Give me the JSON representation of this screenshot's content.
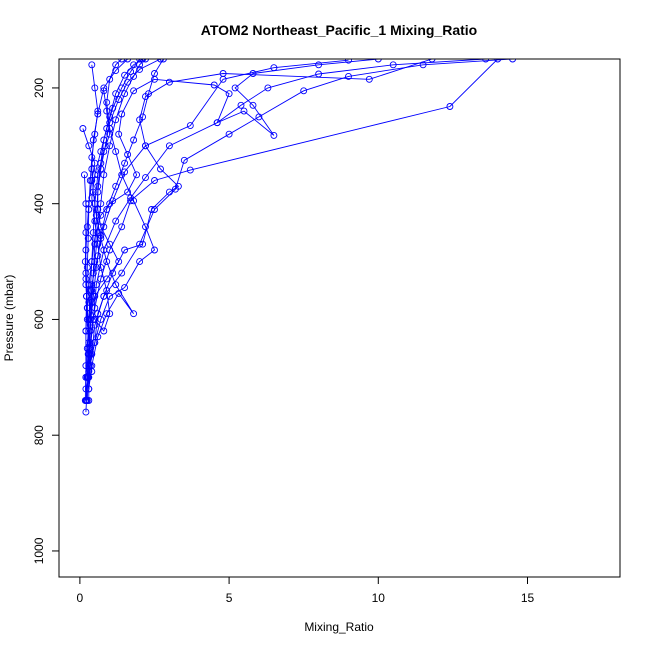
{
  "chart_data": {
    "type": "line",
    "title": "ATOM2 Northeast_Pacific_1 Mixing_Ratio",
    "xlabel": "Mixing_Ratio",
    "ylabel": "Pressure (mbar)",
    "xlim": [
      -0.7,
      18.1
    ],
    "ylim": [
      1045,
      150
    ],
    "y_reversed": true,
    "x_ticks": [
      0,
      5,
      10,
      15
    ],
    "y_ticks": [
      200,
      400,
      600,
      800,
      1000
    ],
    "grid": false,
    "legend": "none",
    "series_color": "#0000ff",
    "marker": "open-circle",
    "series": [
      {
        "points": [
          [
            0.2,
            760
          ],
          [
            0.22,
            740
          ],
          [
            0.25,
            700
          ],
          [
            0.3,
            660
          ],
          [
            0.35,
            620
          ],
          [
            0.4,
            570
          ],
          [
            0.45,
            520
          ],
          [
            0.5,
            470
          ],
          [
            0.55,
            430
          ],
          [
            0.6,
            380
          ],
          [
            0.7,
            340
          ],
          [
            0.85,
            300
          ],
          [
            1.0,
            260
          ],
          [
            1.3,
            220
          ],
          [
            1.6,
            190
          ],
          [
            2.0,
            168
          ],
          [
            2.7,
            150
          ]
        ]
      },
      {
        "points": [
          [
            0.25,
            740
          ],
          [
            0.28,
            700
          ],
          [
            0.35,
            650
          ],
          [
            0.45,
            600
          ],
          [
            0.55,
            540
          ],
          [
            0.8,
            480
          ],
          [
            1.2,
            430
          ],
          [
            1.7,
            390
          ],
          [
            2.2,
            355
          ],
          [
            3.0,
            300
          ],
          [
            4.6,
            260
          ],
          [
            5.4,
            230
          ],
          [
            6.3,
            200
          ],
          [
            8.0,
            176
          ],
          [
            10.5,
            160
          ],
          [
            13.6,
            150
          ]
        ]
      },
      {
        "points": [
          [
            0.3,
            740
          ],
          [
            0.3,
            700
          ],
          [
            0.4,
            660
          ],
          [
            0.5,
            610
          ],
          [
            0.8,
            560
          ],
          [
            1.4,
            520
          ],
          [
            2.0,
            470
          ],
          [
            2.5,
            410
          ],
          [
            3.2,
            375
          ],
          [
            3.5,
            325
          ],
          [
            5.0,
            280
          ],
          [
            6.0,
            250
          ],
          [
            7.5,
            205
          ],
          [
            9.0,
            180
          ],
          [
            11.5,
            160
          ],
          [
            14.5,
            150
          ]
        ]
      },
      {
        "points": [
          [
            0.2,
            740
          ],
          [
            0.25,
            700
          ],
          [
            0.3,
            650
          ],
          [
            0.35,
            600
          ],
          [
            0.4,
            540
          ],
          [
            0.6,
            490
          ],
          [
            0.8,
            440
          ],
          [
            1.1,
            395
          ],
          [
            1.5,
            345
          ],
          [
            2.2,
            300
          ],
          [
            3.7,
            265
          ],
          [
            4.8,
            185
          ],
          [
            6.5,
            165
          ],
          [
            9.0,
            152
          ]
        ]
      },
      {
        "points": [
          [
            0.25,
            700
          ],
          [
            0.35,
            640
          ],
          [
            0.5,
            580
          ],
          [
            0.7,
            530
          ],
          [
            1.0,
            480
          ],
          [
            1.4,
            440
          ],
          [
            1.7,
            395
          ],
          [
            2.5,
            360
          ],
          [
            3.7,
            342
          ],
          [
            12.4,
            232
          ],
          [
            14.0,
            150
          ]
        ]
      },
      {
        "points": [
          [
            0.2,
            700
          ],
          [
            0.28,
            660
          ],
          [
            0.35,
            610
          ],
          [
            0.45,
            560
          ],
          [
            0.55,
            510
          ],
          [
            0.7,
            455
          ],
          [
            0.9,
            410
          ],
          [
            1.2,
            370
          ],
          [
            1.5,
            330
          ],
          [
            1.8,
            290
          ],
          [
            2.1,
            250
          ],
          [
            2.3,
            210
          ],
          [
            2.5,
            175
          ],
          [
            2.8,
            150
          ]
        ]
      },
      {
        "points": [
          [
            0.3,
            720
          ],
          [
            0.4,
            680
          ],
          [
            0.6,
            630
          ],
          [
            0.9,
            590
          ],
          [
            1.3,
            555
          ],
          [
            1.8,
            590
          ],
          [
            1.2,
            540
          ],
          [
            0.9,
            500
          ],
          [
            0.7,
            460
          ],
          [
            0.55,
            420
          ],
          [
            0.45,
            380
          ],
          [
            0.4,
            340
          ],
          [
            0.45,
            290
          ],
          [
            0.6,
            245
          ],
          [
            0.8,
            200
          ],
          [
            1.2,
            170
          ],
          [
            1.6,
            150
          ]
        ]
      },
      {
        "points": [
          [
            0.2,
            700
          ],
          [
            0.25,
            650
          ],
          [
            0.3,
            600
          ],
          [
            0.4,
            550
          ],
          [
            0.5,
            500
          ],
          [
            0.6,
            450
          ],
          [
            0.7,
            400
          ],
          [
            0.8,
            350
          ],
          [
            1.0,
            300
          ],
          [
            1.2,
            255
          ],
          [
            1.5,
            210
          ],
          [
            1.8,
            180
          ],
          [
            2.0,
            160
          ],
          [
            2.2,
            150
          ]
        ]
      },
      {
        "points": [
          [
            0.1,
            270
          ],
          [
            0.3,
            300
          ],
          [
            0.5,
            330
          ],
          [
            0.4,
            360
          ],
          [
            0.3,
            400
          ],
          [
            0.25,
            440
          ],
          [
            0.2,
            480
          ],
          [
            0.2,
            520
          ],
          [
            0.22,
            560
          ],
          [
            0.25,
            600
          ],
          [
            0.3,
            640
          ],
          [
            0.35,
            680
          ],
          [
            0.3,
            720
          ]
        ]
      },
      {
        "points": [
          [
            0.15,
            350
          ],
          [
            0.2,
            400
          ],
          [
            0.2,
            450
          ],
          [
            0.18,
            500
          ],
          [
            0.2,
            540
          ],
          [
            0.25,
            580
          ],
          [
            0.3,
            620
          ],
          [
            0.35,
            660
          ],
          [
            0.4,
            690
          ]
        ]
      },
      {
        "points": [
          [
            0.4,
            160
          ],
          [
            0.5,
            200
          ],
          [
            0.6,
            240
          ],
          [
            0.5,
            280
          ],
          [
            0.4,
            320
          ],
          [
            0.35,
            360
          ],
          [
            0.3,
            410
          ],
          [
            0.28,
            460
          ],
          [
            0.25,
            510
          ],
          [
            0.22,
            560
          ],
          [
            0.2,
            620
          ],
          [
            0.2,
            680
          ],
          [
            0.18,
            740
          ]
        ]
      },
      {
        "points": [
          [
            0.8,
            205
          ],
          [
            0.9,
            240
          ],
          [
            1.0,
            280
          ],
          [
            0.8,
            310
          ],
          [
            0.6,
            350
          ],
          [
            0.5,
            400
          ],
          [
            0.45,
            450
          ],
          [
            0.4,
            500
          ],
          [
            0.35,
            550
          ],
          [
            0.3,
            600
          ],
          [
            0.3,
            650
          ],
          [
            0.25,
            700
          ]
        ]
      },
      {
        "points": [
          [
            0.2,
            530
          ],
          [
            0.3,
            570
          ],
          [
            0.5,
            600
          ],
          [
            0.8,
            620
          ],
          [
            1.0,
            590
          ],
          [
            0.9,
            550
          ],
          [
            0.7,
            510
          ],
          [
            0.6,
            470
          ],
          [
            0.5,
            430
          ],
          [
            0.4,
            390
          ],
          [
            0.5,
            350
          ],
          [
            0.7,
            310
          ],
          [
            0.9,
            270
          ],
          [
            1.1,
            235
          ],
          [
            1.4,
            200
          ],
          [
            1.7,
            172
          ],
          [
            2.0,
            150
          ]
        ]
      },
      {
        "points": [
          [
            0.3,
            680
          ],
          [
            0.5,
            640
          ],
          [
            0.7,
            600
          ],
          [
            1.0,
            560
          ],
          [
            1.5,
            545
          ],
          [
            2.0,
            500
          ],
          [
            2.5,
            480
          ],
          [
            2.2,
            440
          ],
          [
            1.8,
            395
          ],
          [
            1.4,
            350
          ],
          [
            1.2,
            310
          ],
          [
            1.0,
            270
          ],
          [
            0.9,
            225
          ],
          [
            1.0,
            185
          ],
          [
            1.2,
            160
          ],
          [
            1.4,
            150
          ]
        ]
      },
      {
        "points": [
          [
            0.2,
            720
          ],
          [
            0.3,
            690
          ],
          [
            0.5,
            640
          ],
          [
            0.6,
            590
          ],
          [
            0.8,
            560
          ],
          [
            1.1,
            520
          ],
          [
            1.5,
            480
          ],
          [
            2.1,
            470
          ],
          [
            2.4,
            410
          ],
          [
            3.0,
            380
          ],
          [
            3.3,
            370
          ],
          [
            2.7,
            340
          ],
          [
            2.2,
            300
          ],
          [
            2.0,
            255
          ],
          [
            2.2,
            215
          ],
          [
            3.0,
            190
          ],
          [
            4.8,
            175
          ],
          [
            9.7,
            185
          ],
          [
            11.8,
            150
          ]
        ]
      },
      {
        "points": [
          [
            0.3,
            600
          ],
          [
            0.5,
            560
          ],
          [
            0.9,
            530
          ],
          [
            1.3,
            500
          ],
          [
            1.0,
            470
          ],
          [
            0.7,
            440
          ],
          [
            0.6,
            410
          ],
          [
            0.6,
            370
          ],
          [
            0.7,
            330
          ],
          [
            0.8,
            290
          ],
          [
            1.0,
            250
          ],
          [
            1.2,
            210
          ],
          [
            1.5,
            178
          ],
          [
            1.8,
            160
          ],
          [
            2.1,
            150
          ]
        ]
      },
      {
        "points": [
          [
            0.2,
            620
          ],
          [
            0.25,
            580
          ],
          [
            0.3,
            540
          ],
          [
            0.4,
            500
          ],
          [
            0.5,
            460
          ],
          [
            0.7,
            420
          ],
          [
            1.0,
            400
          ],
          [
            1.6,
            380
          ],
          [
            1.9,
            350
          ],
          [
            1.6,
            315
          ],
          [
            1.3,
            280
          ],
          [
            1.4,
            245
          ],
          [
            1.8,
            205
          ],
          [
            2.5,
            185
          ],
          [
            4.5,
            195
          ],
          [
            5.0,
            210
          ],
          [
            4.6,
            260
          ],
          [
            5.5,
            240
          ],
          [
            6.5,
            282
          ],
          [
            5.8,
            230
          ],
          [
            5.2,
            200
          ],
          [
            5.8,
            175
          ],
          [
            8.0,
            160
          ],
          [
            10.0,
            150
          ]
        ]
      }
    ]
  }
}
